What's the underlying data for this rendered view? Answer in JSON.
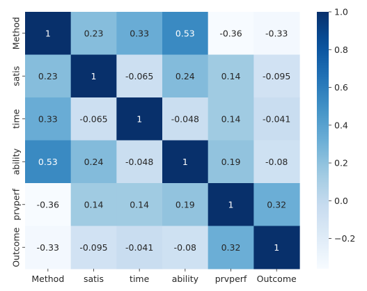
{
  "chart_data": {
    "type": "heatmap",
    "title": "",
    "xlabel": "",
    "ylabel": "",
    "x_categories": [
      "Method",
      "satis",
      "time",
      "ability",
      "prvperf",
      "Outcome"
    ],
    "y_categories": [
      "Method",
      "satis",
      "time",
      "ability",
      "prvperf",
      "Outcome"
    ],
    "values": [
      [
        1,
        0.23,
        0.33,
        0.53,
        -0.36,
        -0.33
      ],
      [
        0.23,
        1,
        -0.065,
        0.24,
        0.14,
        -0.095
      ],
      [
        0.33,
        -0.065,
        1,
        -0.048,
        0.14,
        -0.041
      ],
      [
        0.53,
        0.24,
        -0.048,
        1,
        0.19,
        -0.08
      ],
      [
        -0.36,
        0.14,
        0.14,
        0.19,
        1,
        0.32
      ],
      [
        -0.33,
        -0.095,
        -0.041,
        -0.08,
        0.32,
        1
      ]
    ],
    "annotations": [
      [
        "1",
        "0.23",
        "0.33",
        "0.53",
        "-0.36",
        "-0.33"
      ],
      [
        "0.23",
        "1",
        "-0.065",
        "0.24",
        "0.14",
        "-0.095"
      ],
      [
        "0.33",
        "-0.065",
        "1",
        "-0.048",
        "0.14",
        "-0.041"
      ],
      [
        "0.53",
        "0.24",
        "-0.048",
        "1",
        "0.19",
        "-0.08"
      ],
      [
        "-0.36",
        "0.14",
        "0.14",
        "0.19",
        "1",
        "0.32"
      ],
      [
        "-0.33",
        "-0.095",
        "-0.041",
        "-0.08",
        "0.32",
        "1"
      ]
    ],
    "colormap": "Blues",
    "vmin": -0.36,
    "vmax": 1,
    "colorbar": {
      "ticks": [
        -0.2,
        0.0,
        0.2,
        0.4,
        0.6,
        0.8,
        1.0
      ],
      "tick_labels": [
        "−0.2",
        "0.0",
        "0.2",
        "0.4",
        "0.6",
        "0.8",
        "1.0"
      ]
    },
    "grid": false,
    "legend": "colorbar-right"
  }
}
